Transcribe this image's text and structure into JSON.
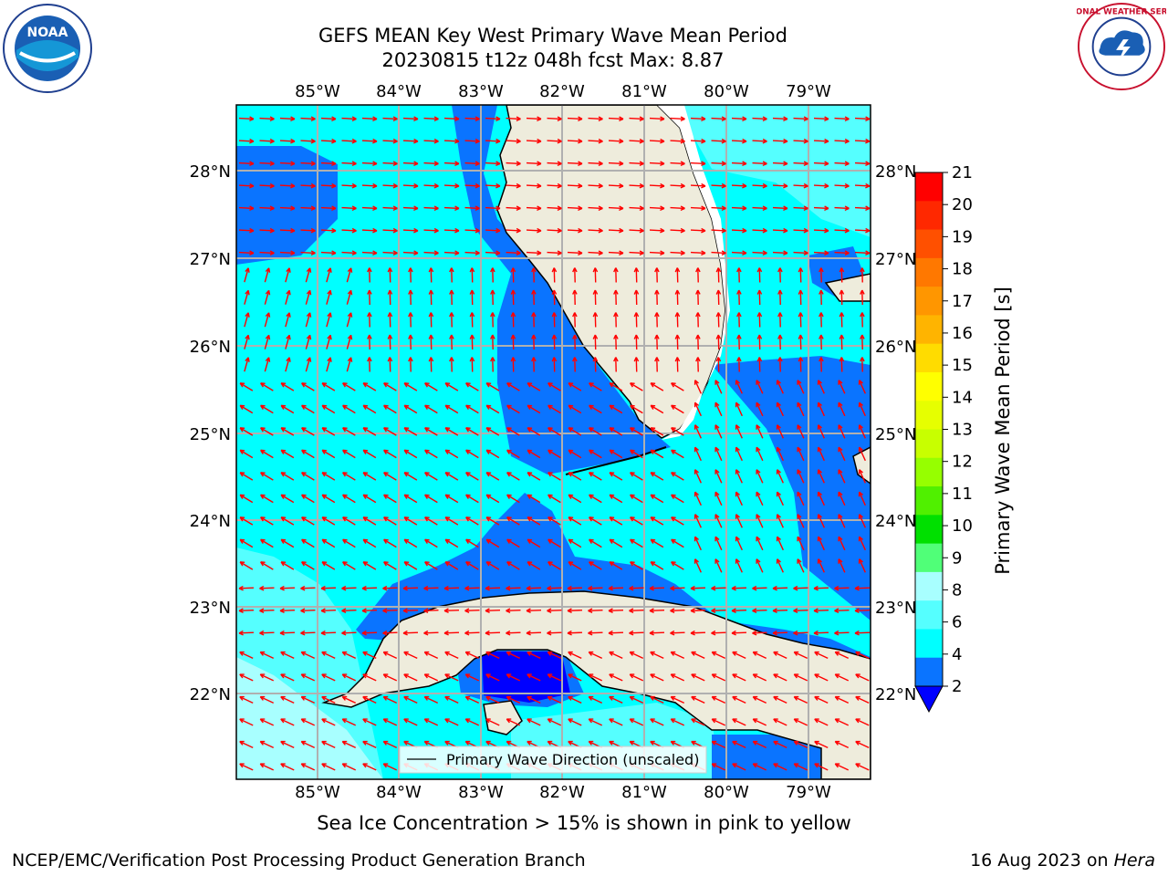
{
  "title": {
    "line1": "GEFS MEAN Key West Primary Wave Mean Period",
    "line2": "20230815 t12z 048h fcst   Max: 8.87"
  },
  "map": {
    "lon_labels_top": [
      "85°W",
      "84°W",
      "83°W",
      "82°W",
      "81°W",
      "80°W",
      "79°W"
    ],
    "lon_labels_bottom": [
      "85°W",
      "84°W",
      "83°W",
      "82°W",
      "81°W",
      "80°W",
      "79°W"
    ],
    "lat_labels_left": [
      "28°N",
      "27°N",
      "26°N",
      "25°N",
      "24°N",
      "23°N",
      "22°N"
    ],
    "lat_labels_right": [
      "28°N",
      "27°N",
      "26°N",
      "25°N",
      "24°N",
      "23°N",
      "22°N"
    ],
    "legend_label": "Primary Wave Direction (unscaled)",
    "arrow_color": "#ff0000",
    "land_color": "#eeecdc",
    "colors": {
      "period_2_4": "#0a74ff",
      "period_4_6": "#00ffff",
      "period_6_8": "#55ffff",
      "period_8_9": "#a8ffff",
      "period_below_2": "#0000ff"
    }
  },
  "colorbar": {
    "label": "Primary Wave Mean Period [s]",
    "ticks": [
      "21",
      "20",
      "19",
      "18",
      "17",
      "16",
      "15",
      "14",
      "13",
      "12",
      "11",
      "10",
      "9",
      "8",
      "6",
      "4",
      "2"
    ],
    "colors": [
      "#ff0000",
      "#ff2800",
      "#ff5000",
      "#ff7800",
      "#ff9600",
      "#ffb400",
      "#ffdc00",
      "#ffff00",
      "#e6ff00",
      "#c8ff00",
      "#96ff00",
      "#50f000",
      "#00e000",
      "#50ff78",
      "#a8ffff",
      "#55ffff",
      "#00ffff",
      "#0a74ff",
      "#0000ff"
    ]
  },
  "sea_ice_note": "Sea Ice Concentration > 15% is shown in pink to yellow",
  "footer": {
    "left": "NCEP/EMC/Verification Post Processing Product Generation Branch",
    "right_prefix": "16 Aug 2023 on ",
    "right_host": "Hera"
  },
  "logos": {
    "left": "noaa-logo",
    "left_text": "NOAA",
    "right": "nws-logo",
    "right_text": "NATIONAL WEATHER SERVICE"
  }
}
